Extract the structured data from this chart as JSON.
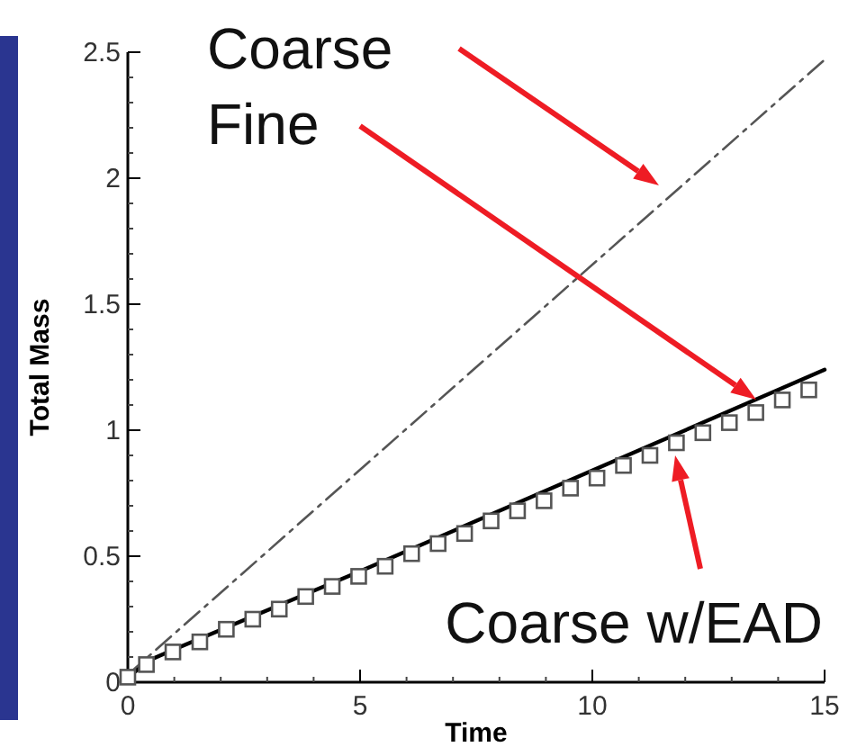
{
  "chart_data": {
    "type": "line",
    "xlabel": "Time",
    "ylabel": "Total Mass",
    "xlim": [
      0,
      15
    ],
    "ylim": [
      0,
      2.5
    ],
    "xticks": [
      0,
      5,
      10,
      15
    ],
    "yticks": [
      0,
      0.5,
      1,
      1.5,
      2,
      2.5
    ],
    "grid": false,
    "series": [
      {
        "color": "#555555",
        "line_style": "dashed",
        "x": [
          0,
          15
        ],
        "values": [
          0.03,
          2.47
        ]
      },
      {
        "color": "#000000",
        "line_style": "solid",
        "x": [
          0,
          0.5,
          1,
          5,
          10,
          15
        ],
        "values": [
          0.02,
          0.09,
          0.13,
          0.44,
          0.84,
          1.24
        ]
      },
      {
        "type": "scatter",
        "color": "#555555",
        "marker": "square",
        "x": [
          0,
          0.4,
          0.97,
          1.55,
          2.12,
          2.69,
          3.26,
          3.83,
          4.4,
          4.97,
          5.54,
          6.11,
          6.68,
          7.25,
          7.82,
          8.39,
          8.96,
          9.53,
          10.1,
          10.67,
          11.24,
          11.81,
          12.38,
          12.95,
          13.52,
          14.09,
          14.66
        ],
        "values": [
          0.02,
          0.07,
          0.12,
          0.16,
          0.21,
          0.25,
          0.29,
          0.34,
          0.38,
          0.42,
          0.46,
          0.51,
          0.55,
          0.59,
          0.64,
          0.68,
          0.72,
          0.77,
          0.81,
          0.86,
          0.9,
          0.95,
          0.99,
          1.03,
          1.07,
          1.12,
          1.16
        ]
      }
    ],
    "annotations": [
      "Coarse",
      "Fine",
      "Coarse w/EAD"
    ]
  }
}
